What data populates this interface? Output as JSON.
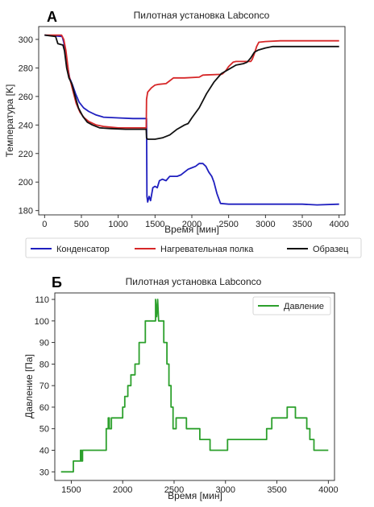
{
  "chart_data": [
    {
      "panel_letter": "А",
      "type": "line",
      "title": "Пилотная установка Labconco",
      "xlabel": "Время [мин]",
      "ylabel": "Температура [K]",
      "xlim": [
        -80,
        4080
      ],
      "ylim": [
        177,
        309
      ],
      "xticks": [
        0,
        500,
        1000,
        1500,
        2000,
        2500,
        3000,
        3500,
        4000
      ],
      "yticks": [
        180,
        200,
        220,
        240,
        260,
        280,
        300
      ],
      "grid": false,
      "legend_position": "below",
      "series": [
        {
          "name": "Конденсатор",
          "color": "#1f1fbf",
          "points": [
            [
              0,
              303
            ],
            [
              240,
              302
            ],
            [
              260,
              298
            ],
            [
              300,
              285
            ],
            [
              340,
              273
            ],
            [
              380,
              268
            ],
            [
              420,
              262
            ],
            [
              470,
              256
            ],
            [
              530,
              252
            ],
            [
              600,
              249.5
            ],
            [
              700,
              247
            ],
            [
              800,
              245.5
            ],
            [
              1000,
              245
            ],
            [
              1200,
              244.5
            ],
            [
              1385,
              244.5
            ],
            [
              1390,
              190
            ],
            [
              1400,
              186
            ],
            [
              1420,
              190
            ],
            [
              1440,
              187
            ],
            [
              1470,
              196
            ],
            [
              1500,
              197
            ],
            [
              1530,
              196
            ],
            [
              1560,
              201
            ],
            [
              1600,
              202
            ],
            [
              1650,
              201
            ],
            [
              1700,
              204
            ],
            [
              1800,
              204
            ],
            [
              1850,
              205
            ],
            [
              1900,
              207
            ],
            [
              1950,
              209
            ],
            [
              2000,
              210
            ],
            [
              2050,
              211
            ],
            [
              2100,
              213
            ],
            [
              2150,
              213
            ],
            [
              2190,
              211
            ],
            [
              2230,
              207
            ],
            [
              2270,
              204
            ],
            [
              2300,
              200
            ],
            [
              2340,
              192
            ],
            [
              2390,
              185
            ],
            [
              2500,
              184.5
            ],
            [
              3000,
              184.5
            ],
            [
              3500,
              184.5
            ],
            [
              3700,
              184
            ],
            [
              4000,
              184.5
            ]
          ]
        },
        {
          "name": "Нагревательная полка",
          "color": "#d62728",
          "points": [
            [
              0,
              303
            ],
            [
              230,
              303
            ],
            [
              260,
              300
            ],
            [
              290,
              292
            ],
            [
              330,
              275
            ],
            [
              380,
              265
            ],
            [
              430,
              255
            ],
            [
              480,
              249
            ],
            [
              540,
              245
            ],
            [
              600,
              242.5
            ],
            [
              700,
              240
            ],
            [
              800,
              239
            ],
            [
              1000,
              238
            ],
            [
              1200,
              238
            ],
            [
              1380,
              238
            ],
            [
              1385,
              258
            ],
            [
              1400,
              263
            ],
            [
              1450,
              266
            ],
            [
              1500,
              268
            ],
            [
              1550,
              268.5
            ],
            [
              1650,
              269
            ],
            [
              1700,
              271
            ],
            [
              1750,
              273
            ],
            [
              1900,
              273
            ],
            [
              2100,
              273.5
            ],
            [
              2150,
              275
            ],
            [
              2400,
              275.5
            ],
            [
              2420,
              276
            ],
            [
              2460,
              278
            ],
            [
              2500,
              281
            ],
            [
              2560,
              284
            ],
            [
              2600,
              284.5
            ],
            [
              2800,
              284.5
            ],
            [
              2820,
              286
            ],
            [
              2850,
              290
            ],
            [
              2880,
              295
            ],
            [
              2910,
              298
            ],
            [
              3000,
              298.5
            ],
            [
              3200,
              299
            ],
            [
              3500,
              299
            ],
            [
              3800,
              299
            ],
            [
              4000,
              299
            ]
          ]
        },
        {
          "name": "Образец",
          "color": "#111111",
          "points": [
            [
              0,
              303
            ],
            [
              150,
              302
            ],
            [
              180,
              297
            ],
            [
              250,
              296
            ],
            [
              270,
              292
            ],
            [
              300,
              280
            ],
            [
              330,
              273
            ],
            [
              370,
              269
            ],
            [
              410,
              261
            ],
            [
              460,
              252
            ],
            [
              520,
              246
            ],
            [
              580,
              242
            ],
            [
              650,
              240
            ],
            [
              750,
              238
            ],
            [
              900,
              237.5
            ],
            [
              1100,
              237
            ],
            [
              1380,
              237
            ],
            [
              1385,
              231
            ],
            [
              1400,
              230
            ],
            [
              1500,
              230
            ],
            [
              1600,
              231
            ],
            [
              1700,
              233
            ],
            [
              1800,
              237
            ],
            [
              1900,
              240
            ],
            [
              1950,
              241
            ],
            [
              2000,
              245
            ],
            [
              2100,
              252
            ],
            [
              2200,
              262
            ],
            [
              2300,
              270
            ],
            [
              2400,
              276
            ],
            [
              2500,
              279
            ],
            [
              2600,
              282
            ],
            [
              2700,
              283
            ],
            [
              2750,
              284
            ],
            [
              2800,
              287
            ],
            [
              2850,
              291
            ],
            [
              2900,
              292.5
            ],
            [
              3000,
              294
            ],
            [
              3100,
              295
            ],
            [
              3500,
              295
            ],
            [
              4000,
              295
            ]
          ]
        }
      ]
    },
    {
      "panel_letter": "Б",
      "type": "line",
      "title": "Пилотная установка Labconco",
      "xlabel": "Время [мин]",
      "ylabel": "Давление [Па]",
      "xlim": [
        1340,
        4060
      ],
      "ylim": [
        26,
        113
      ],
      "xticks": [
        1500,
        2000,
        2500,
        3000,
        3500,
        4000
      ],
      "yticks": [
        30,
        40,
        50,
        60,
        70,
        80,
        90,
        100,
        110
      ],
      "grid": false,
      "legend_position": "top-right",
      "series": [
        {
          "name": "Давление",
          "color": "#2ca02c",
          "points": [
            [
              1400,
              30
            ],
            [
              1520,
              30
            ],
            [
              1520,
              35
            ],
            [
              1590,
              35
            ],
            [
              1590,
              40
            ],
            [
              1600,
              40
            ],
            [
              1600,
              35
            ],
            [
              1610,
              35
            ],
            [
              1610,
              40
            ],
            [
              1840,
              40
            ],
            [
              1840,
              50
            ],
            [
              1860,
              50
            ],
            [
              1860,
              55
            ],
            [
              1870,
              55
            ],
            [
              1870,
              50
            ],
            [
              1890,
              50
            ],
            [
              1890,
              55
            ],
            [
              2000,
              55
            ],
            [
              2000,
              60
            ],
            [
              2020,
              60
            ],
            [
              2020,
              65
            ],
            [
              2050,
              65
            ],
            [
              2050,
              70
            ],
            [
              2080,
              70
            ],
            [
              2080,
              75
            ],
            [
              2120,
              75
            ],
            [
              2120,
              80
            ],
            [
              2160,
              80
            ],
            [
              2160,
              90
            ],
            [
              2220,
              90
            ],
            [
              2220,
              100
            ],
            [
              2320,
              100
            ],
            [
              2320,
              110
            ],
            [
              2330,
              102
            ],
            [
              2340,
              110
            ],
            [
              2350,
              100
            ],
            [
              2400,
              100
            ],
            [
              2400,
              90
            ],
            [
              2430,
              90
            ],
            [
              2430,
              80
            ],
            [
              2450,
              80
            ],
            [
              2450,
              70
            ],
            [
              2470,
              70
            ],
            [
              2470,
              60
            ],
            [
              2490,
              60
            ],
            [
              2490,
              50
            ],
            [
              2520,
              50
            ],
            [
              2520,
              55
            ],
            [
              2620,
              55
            ],
            [
              2620,
              50
            ],
            [
              2750,
              50
            ],
            [
              2750,
              45
            ],
            [
              2850,
              45
            ],
            [
              2850,
              40
            ],
            [
              3020,
              40
            ],
            [
              3020,
              45
            ],
            [
              3400,
              45
            ],
            [
              3400,
              50
            ],
            [
              3450,
              50
            ],
            [
              3450,
              55
            ],
            [
              3600,
              55
            ],
            [
              3600,
              60
            ],
            [
              3680,
              60
            ],
            [
              3680,
              55
            ],
            [
              3790,
              55
            ],
            [
              3790,
              50
            ],
            [
              3820,
              50
            ],
            [
              3820,
              45
            ],
            [
              3860,
              45
            ],
            [
              3860,
              40
            ],
            [
              4000,
              40
            ]
          ]
        }
      ]
    }
  ]
}
